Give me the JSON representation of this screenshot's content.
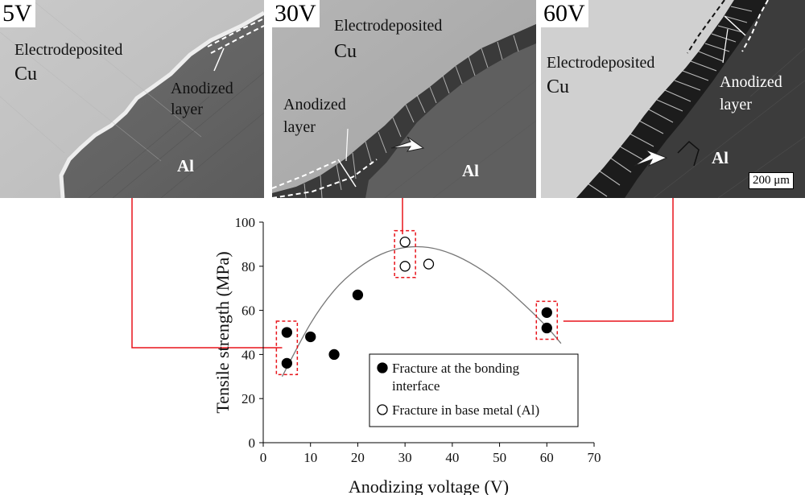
{
  "panels": [
    {
      "voltage": "5V",
      "cu_label_1": "Electrodeposited",
      "cu_label_2": "Cu",
      "anodized_1": "Anodized",
      "anodized_2": "layer",
      "al_label": "Al"
    },
    {
      "voltage": "30V",
      "cu_label_1": "Electrodeposited",
      "cu_label_2": "Cu",
      "anodized_1": "Anodized",
      "anodized_2": "layer",
      "al_label": "Al"
    },
    {
      "voltage": "60V",
      "cu_label_1": "Electrodeposited",
      "cu_label_2": "Cu",
      "anodized_1": "Anodized",
      "anodized_2": "layer",
      "al_label": "Al",
      "scale_bar": "200 μm"
    }
  ],
  "colors": {
    "callout": "#e8141b",
    "fit_curve": "#777777",
    "marker": "#000000"
  },
  "chart_data": {
    "type": "scatter",
    "xlabel": "Anodizing voltage (V)",
    "ylabel": "Tensile strength (MPa)",
    "xlim": [
      0,
      70
    ],
    "ylim": [
      0,
      100
    ],
    "xticks": [
      0,
      10,
      20,
      30,
      40,
      50,
      60,
      70
    ],
    "yticks": [
      0,
      20,
      40,
      60,
      80,
      100
    ],
    "grid": false,
    "legend_position": "bottom-right",
    "series": [
      {
        "name": "Fracture at the bonding interface",
        "marker": "filled-circle",
        "x": [
          5,
          5,
          10,
          15,
          20,
          60,
          60
        ],
        "y": [
          50,
          36,
          48,
          40,
          67,
          59,
          52
        ]
      },
      {
        "name": "Fracture in base metal (Al)",
        "marker": "open-circle",
        "x": [
          30,
          30,
          35
        ],
        "y": [
          91,
          80,
          81
        ]
      }
    ],
    "legend": [
      {
        "line_1": "Fracture at the bonding",
        "line_2": "interface"
      },
      {
        "line_1": "Fracture in base metal (Al)"
      }
    ],
    "fit_curve": {
      "x": [
        4,
        10,
        15,
        20,
        25,
        30,
        35,
        40,
        45,
        50,
        55,
        60,
        63
      ],
      "y": [
        30,
        54,
        69,
        79,
        85.5,
        88.5,
        88.5,
        85.5,
        80,
        72.5,
        63,
        52.5,
        45
      ]
    },
    "highlight_groups": [
      {
        "x": [
          5,
          5
        ],
        "y": [
          50,
          36
        ],
        "linked_panel": "5V"
      },
      {
        "x": [
          30,
          30
        ],
        "y": [
          91,
          80
        ],
        "linked_panel": "30V"
      },
      {
        "x": [
          60,
          60
        ],
        "y": [
          59,
          52
        ],
        "linked_panel": "60V"
      }
    ]
  }
}
